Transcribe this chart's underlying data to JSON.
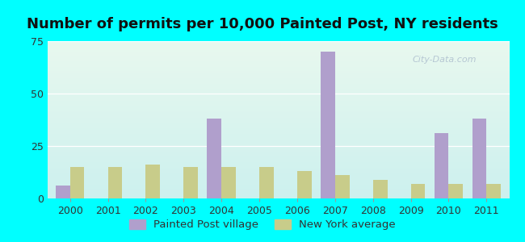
{
  "title": "Number of permits per 10,000 Painted Post, NY residents",
  "years": [
    2000,
    2001,
    2002,
    2003,
    2004,
    2005,
    2006,
    2007,
    2008,
    2009,
    2010,
    2011
  ],
  "painted_post": [
    6,
    0,
    0,
    0,
    38,
    0,
    0,
    70,
    0,
    0,
    31,
    38
  ],
  "ny_average": [
    15,
    15,
    16,
    15,
    15,
    15,
    13,
    11,
    9,
    7,
    7,
    7
  ],
  "painted_post_color": "#b09fcc",
  "ny_avg_color": "#c8cc8a",
  "background_outer": "#00ffff",
  "bg_top": "#e8f8ee",
  "bg_bottom": "#ccf0ee",
  "ylim": [
    0,
    75
  ],
  "yticks": [
    0,
    25,
    50,
    75
  ],
  "bar_width": 0.38,
  "title_fontsize": 13.0,
  "legend_painted_post": "Painted Post village",
  "legend_ny_avg": "New York average",
  "watermark": "City-Data.com"
}
